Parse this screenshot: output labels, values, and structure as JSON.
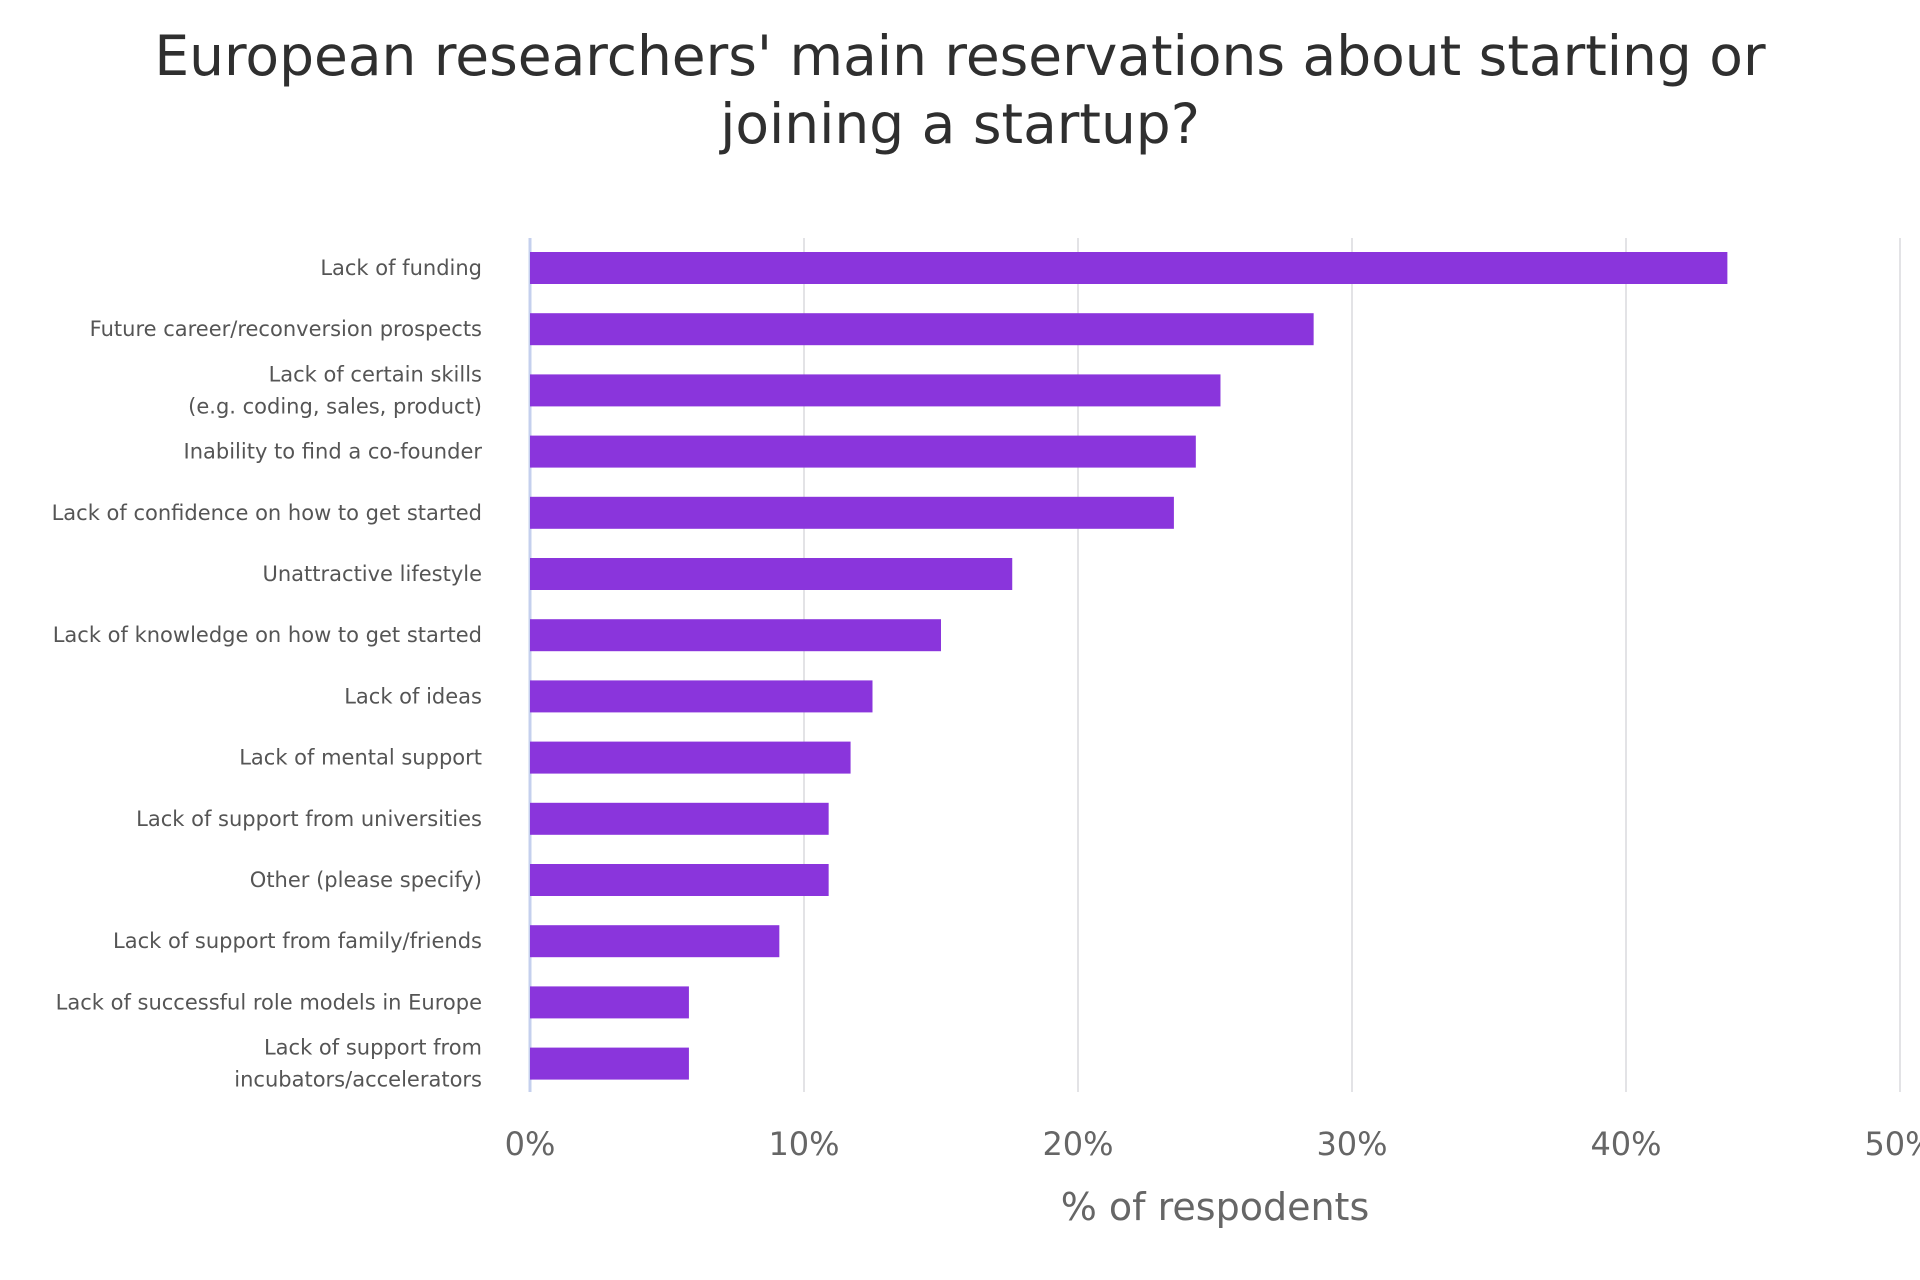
{
  "chart_data": {
    "type": "bar",
    "orientation": "horizontal",
    "title": "European researchers' main reservations about starting or joining a startup?",
    "title_lines": [
      "European researchers' main reservations about starting or",
      "joining a startup?"
    ],
    "xlabel": "% of respodents",
    "ylabel": "",
    "xlim": [
      0,
      50
    ],
    "x_ticks": [
      0,
      10,
      20,
      30,
      40,
      50
    ],
    "x_tick_labels": [
      "0%",
      "10%",
      "20%",
      "30%",
      "40%",
      "50%"
    ],
    "grid": "vertical",
    "legend": "none",
    "bar_color": "#8a35dc",
    "categories": [
      "Lack of funding",
      "Future career/reconversion prospects",
      "Lack of certain skills (e.g. coding, sales, product)",
      "Inability to find a co-founder",
      "Lack of confidence on how to get started",
      "Unattractive lifestyle",
      "Lack of knowledge on how to get started",
      "Lack of ideas",
      "Lack of mental support",
      "Lack of support from universities",
      "Other (please specify)",
      "Lack of support from family/friends",
      "Lack of successful role models in Europe",
      "Lack of support from incubators/accelerators"
    ],
    "category_label_lines": [
      [
        "Lack of funding"
      ],
      [
        "Future career/reconversion prospects"
      ],
      [
        "Lack of certain skills",
        "(e.g. coding, sales, product)"
      ],
      [
        "Inability to find a co-founder"
      ],
      [
        "Lack of confidence on how to get started"
      ],
      [
        "Unattractive lifestyle"
      ],
      [
        "Lack of knowledge on how to get started"
      ],
      [
        "Lack of ideas"
      ],
      [
        "Lack of mental support"
      ],
      [
        "Lack of support from universities"
      ],
      [
        "Other (please specify)"
      ],
      [
        "Lack of support from family/friends"
      ],
      [
        "Lack of successful role models in Europe"
      ],
      [
        "Lack of support from",
        "incubators/accelerators"
      ]
    ],
    "values": [
      43.7,
      28.6,
      25.2,
      24.3,
      23.5,
      17.6,
      15.0,
      12.5,
      11.7,
      10.9,
      10.9,
      9.1,
      5.8,
      5.8
    ]
  }
}
